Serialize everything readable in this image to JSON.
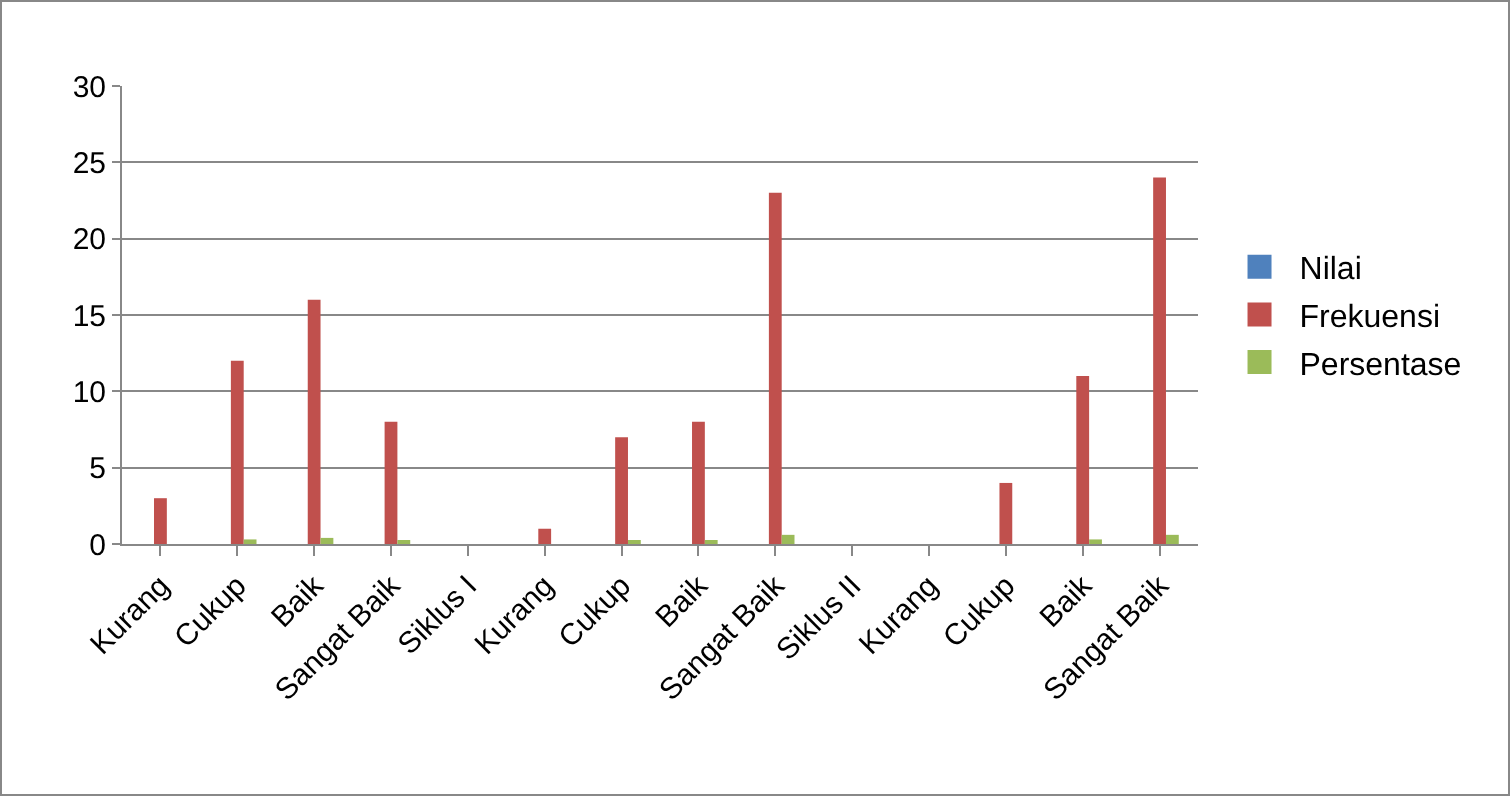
{
  "chart_data": {
    "type": "bar",
    "categories": [
      "Kurang",
      "Cukup",
      "Baik",
      "Sangat Baik",
      "Siklus I",
      "Kurang",
      "Cukup",
      "Baik",
      "Sangat Baik",
      "Siklus II",
      "Kurang",
      "Cukup",
      "Baik",
      "Sangat Baik"
    ],
    "series": [
      {
        "name": "Nilai",
        "color": "#4f81bd",
        "values": [
          null,
          null,
          null,
          null,
          null,
          null,
          null,
          null,
          null,
          null,
          null,
          null,
          null,
          null
        ]
      },
      {
        "name": "Frekuensi",
        "color": "#c0504d",
        "values": [
          3,
          12,
          16,
          8,
          null,
          1,
          7,
          8,
          23,
          null,
          null,
          4,
          11,
          24
        ]
      },
      {
        "name": "Persentase",
        "color": "#9bbb59",
        "values": [
          null,
          0.3,
          0.4,
          0.2,
          null,
          0,
          0.2,
          0.2,
          0.6,
          null,
          null,
          null,
          0.3,
          0.6
        ]
      }
    ],
    "ylim": [
      0,
      30
    ],
    "yticks": [
      0,
      5,
      10,
      15,
      20,
      25,
      30
    ],
    "grid": "y",
    "legend": "right"
  }
}
